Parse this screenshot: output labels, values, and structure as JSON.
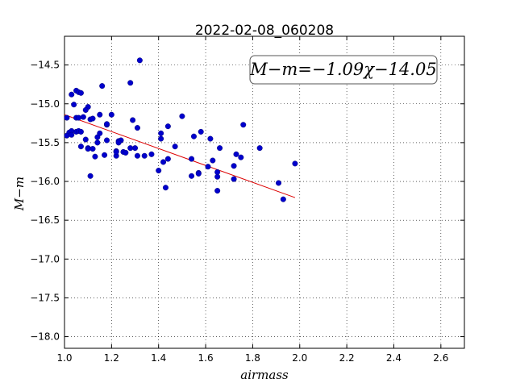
{
  "chart_data": {
    "type": "scatter",
    "title": "2022-02-08_060208",
    "xlabel": "airmass",
    "ylabel": "M−m",
    "xlim": [
      1.0,
      2.7
    ],
    "ylim": [
      -18.15,
      -14.13
    ],
    "xticks": [
      1.0,
      1.2,
      1.4,
      1.6,
      1.8,
      2.0,
      2.2,
      2.4,
      2.6
    ],
    "xtick_labels": [
      "1.0",
      "1.2",
      "1.4",
      "1.6",
      "1.8",
      "2.0",
      "2.2",
      "2.4",
      "2.6"
    ],
    "yticks": [
      -14.5,
      -15.0,
      -15.5,
      -16.0,
      -16.5,
      -17.0,
      -17.5,
      -18.0
    ],
    "ytick_labels": [
      "−14.5",
      "−15.0",
      "−15.5",
      "−16.0",
      "−16.5",
      "−17.0",
      "−17.5",
      "−18.0"
    ],
    "grid": true,
    "point_color": "#0000cc",
    "fit_color": "#dd0000",
    "fit": {
      "label": "M−m=−1.09χ−14.05",
      "slope": -1.09,
      "intercept": -14.05,
      "x_range": [
        1.0,
        1.98
      ]
    },
    "points": {
      "x": [
        1.01,
        1.02,
        1.03,
        1.04,
        1.05,
        1.05,
        1.06,
        1.06,
        1.07,
        1.07,
        1.03,
        1.05,
        1.06,
        1.08,
        1.09,
        1.1,
        1.1,
        1.11,
        1.12,
        1.14,
        1.15,
        1.16,
        1.18,
        1.18,
        1.2,
        1.22,
        1.23,
        1.24,
        1.25,
        1.28,
        1.29,
        1.3,
        1.31,
        1.32,
        1.01,
        1.03,
        1.07,
        1.09,
        1.1,
        1.12,
        1.13,
        1.14,
        1.15,
        1.17,
        1.18,
        1.22,
        1.23,
        1.26,
        1.28,
        1.31,
        1.34,
        1.37,
        1.4,
        1.41,
        1.42,
        1.43,
        1.44,
        1.47,
        1.5,
        1.54,
        1.55,
        1.57,
        1.58,
        1.61,
        1.63,
        1.65,
        1.66,
        1.72,
        1.73,
        1.75,
        1.76,
        1.83,
        1.91,
        1.93,
        1.98,
        1.41,
        1.44,
        1.54,
        1.57,
        1.62,
        1.65,
        1.65,
        1.72,
        1.11,
        1.22
      ],
      "y": [
        -15.18,
        -15.37,
        -14.88,
        -15.01,
        -14.83,
        -15.36,
        -14.85,
        -15.35,
        -15.55,
        -14.86,
        -15.35,
        -15.18,
        -15.18,
        -15.17,
        -15.46,
        -15.57,
        -15.04,
        -15.2,
        -15.19,
        -15.5,
        -15.14,
        -14.77,
        -15.47,
        -15.27,
        -15.14,
        -15.61,
        -15.48,
        -15.47,
        -15.62,
        -14.73,
        -15.21,
        -15.57,
        -15.31,
        -14.44,
        -15.41,
        -15.4,
        -15.36,
        -15.08,
        -15.58,
        -15.58,
        -15.68,
        -15.43,
        -15.38,
        -15.66,
        -15.26,
        -15.67,
        -15.5,
        -15.63,
        -15.57,
        -15.67,
        -15.67,
        -15.65,
        -15.86,
        -15.45,
        -15.75,
        -16.08,
        -15.29,
        -15.55,
        -15.16,
        -15.93,
        -15.42,
        -15.89,
        -15.36,
        -15.81,
        -15.73,
        -15.94,
        -15.57,
        -15.97,
        -15.65,
        -15.69,
        -15.27,
        -15.57,
        -16.02,
        -16.23,
        -15.77,
        -15.38,
        -15.71,
        -15.71,
        -15.9,
        -15.45,
        -16.12,
        -15.88,
        -15.8,
        -15.93,
        -15.62
      ]
    }
  }
}
